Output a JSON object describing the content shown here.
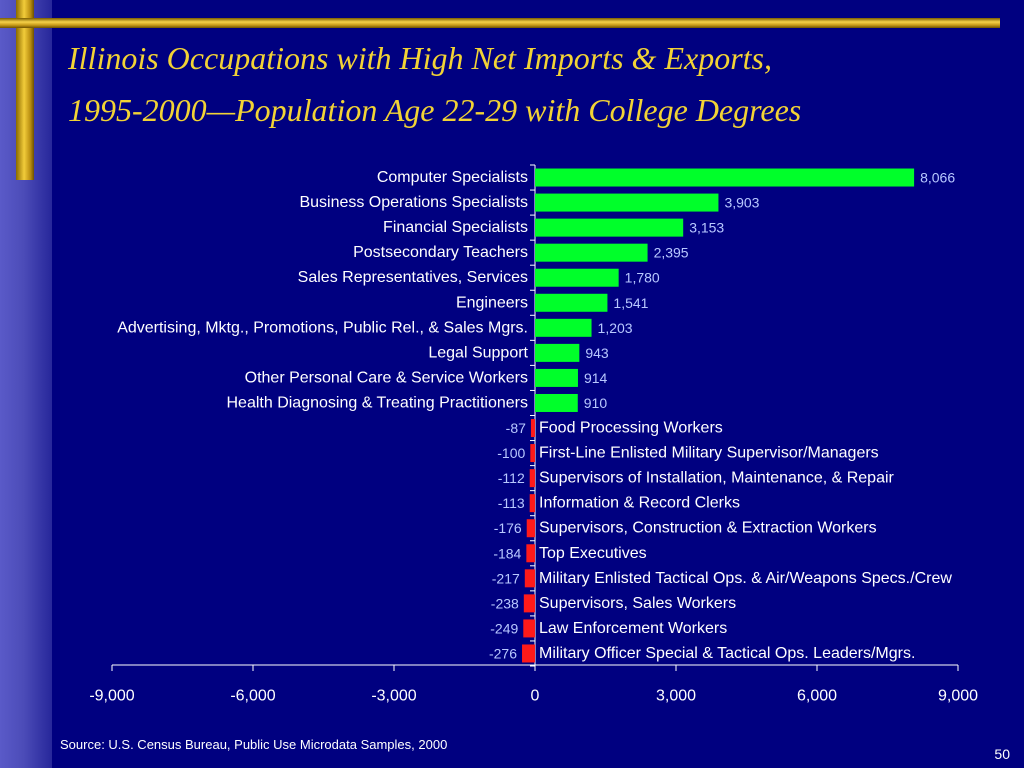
{
  "slide": {
    "title_line1": "Illinois Occupations with High Net Imports & Exports,",
    "title_line2": "1995-2000—Population Age 22-29 with College Degrees",
    "source": "Source:  U.S. Census Bureau, Public Use Microdata Samples, 2000",
    "page_number": "50"
  },
  "colors": {
    "background": "#000080",
    "title": "#f2d335",
    "positive_bar": "#00ff2a",
    "negative_bar": "#ff1a1a",
    "value_label": "#b8c8ff",
    "text": "#ffffff"
  },
  "chart_data": {
    "type": "bar",
    "orientation": "horizontal",
    "title": "",
    "xlabel": "",
    "ylabel": "",
    "xlim": [
      -9000,
      9000
    ],
    "xticks": [
      -9000,
      -6000,
      -3000,
      0,
      3000,
      6000,
      9000
    ],
    "xtick_labels": [
      "-9,000",
      "-6,000",
      "-3,000",
      "0",
      "3,000",
      "6,000",
      "9,000"
    ],
    "grid": false,
    "legend": "none",
    "categories": [
      "Computer Specialists",
      "Business Operations Specialists",
      "Financial Specialists",
      "Postsecondary Teachers",
      "Sales Representatives, Services",
      "Engineers",
      "Advertising, Mktg., Promotions, Public Rel., & Sales Mgrs.",
      "Legal Support",
      "Other Personal Care & Service Workers",
      "Health Diagnosing & Treating Practitioners",
      "Food Processing Workers",
      "First-Line Enlisted Military Supervisor/Managers",
      "Supervisors of Installation, Maintenance, & Repair",
      "Information & Record Clerks",
      "Supervisors, Construction & Extraction Workers",
      "Top Executives",
      "Military Enlisted Tactical Ops. & Air/Weapons Specs./Crew",
      "Supervisors, Sales Workers",
      "Law Enforcement Workers",
      "Military Officer Special & Tactical Ops. Leaders/Mgrs."
    ],
    "values": [
      8066,
      3903,
      3153,
      2395,
      1780,
      1541,
      1203,
      943,
      914,
      910,
      -87,
      -100,
      -112,
      -113,
      -176,
      -184,
      -217,
      -238,
      -249,
      -276
    ],
    "value_labels": [
      "8,066",
      "3,903",
      "3,153",
      "2,395",
      "1,780",
      "1,541",
      "1,203",
      "943",
      "914",
      "910",
      "-87",
      "-100",
      "-112",
      "-113",
      "-176",
      "-184",
      "-217",
      "-238",
      "-249",
      "-276"
    ]
  }
}
